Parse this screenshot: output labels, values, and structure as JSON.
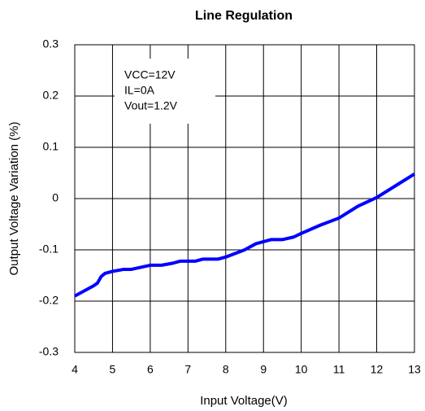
{
  "chart_data": {
    "type": "line",
    "title": "Line Regulation",
    "x_label": "Input Voltage(V)",
    "y_label": "Output Voltage Variation (%)",
    "annotations": [
      "VCC=12V",
      "IL=0A",
      "Vout=1.2V"
    ],
    "x": [
      4,
      4.5,
      4.6,
      4.7,
      4.8,
      5,
      5.3,
      5.5,
      6,
      6.3,
      6.6,
      6.8,
      7.2,
      7.4,
      7.8,
      8,
      8.5,
      8.8,
      9.2,
      9.5,
      9.8,
      10,
      10.5,
      11,
      11.5,
      12,
      12.5,
      13
    ],
    "series": [
      {
        "name": "Line Regulation",
        "color": "#0000ff",
        "values": [
          -0.19,
          -0.17,
          -0.165,
          -0.152,
          -0.146,
          -0.142,
          -0.138,
          -0.138,
          -0.13,
          -0.13,
          -0.126,
          -0.122,
          -0.122,
          -0.118,
          -0.118,
          -0.114,
          -0.1,
          -0.088,
          -0.08,
          -0.08,
          -0.075,
          -0.068,
          -0.052,
          -0.038,
          -0.015,
          0.002,
          0.025,
          0.048
        ]
      }
    ],
    "xlim": [
      4,
      13
    ],
    "xticks": [
      4,
      5,
      6,
      7,
      8,
      9,
      10,
      11,
      12,
      13
    ],
    "ylim": [
      -0.3,
      0.3
    ],
    "yticks": [
      0.3,
      0.2,
      0.1,
      0,
      -0.1,
      -0.2,
      -0.3
    ],
    "grid": true
  }
}
